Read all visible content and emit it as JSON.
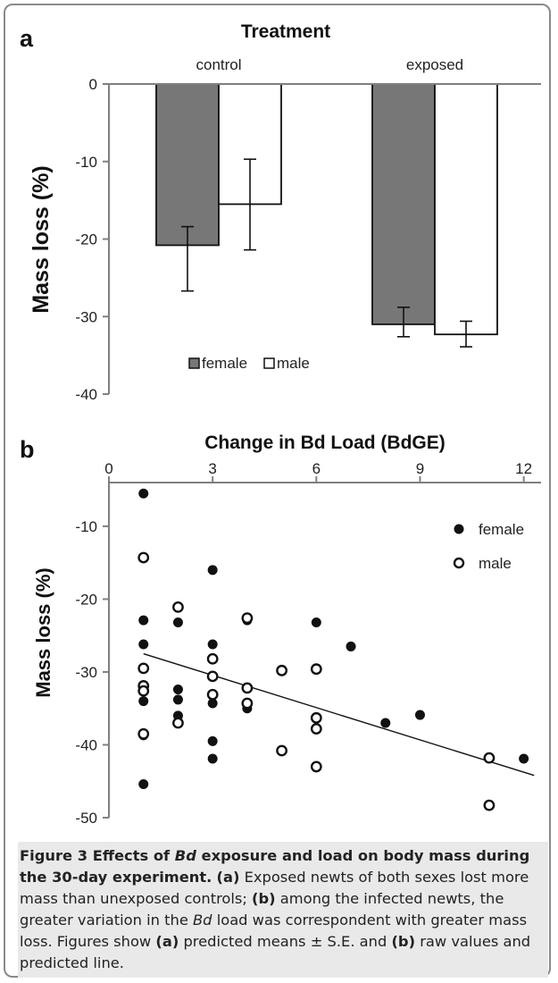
{
  "panel_a": {
    "label": "a",
    "title": "Treatment",
    "ylabel": "Mass loss (%)",
    "legend": [
      {
        "name": "female",
        "color": "#777777"
      },
      {
        "name": "male",
        "color": "#ffffff"
      }
    ]
  },
  "panel_b": {
    "label": "b",
    "xlabel": "Change in Bd Load (BdGE)",
    "ylabel": "Mass loss (%)",
    "legend": [
      {
        "name": "female",
        "marker": "filled-circle"
      },
      {
        "name": "male",
        "marker": "open-circle"
      }
    ]
  },
  "caption": {
    "fig_label": "Figure 3",
    "title_1": "Effects of ",
    "title_italic": "Bd",
    "title_2": " exposure and load on body mass during the 30-day experiment.",
    "a_ref": "(a)",
    "text_1": " Exposed newts of both sexes lost more mass than unexposed controls; ",
    "b_ref": "(b)",
    "text_2": " among the infected newts, the greater variation in the ",
    "text_italic": "Bd",
    "text_3": " load was correspondent with greater mass loss. Figures show ",
    "a_ref2": "(a)",
    "text_4": " predicted means ± S.E. and ",
    "b_ref2": "(b)",
    "text_5": " raw values and predicted line."
  },
  "chart_data": [
    {
      "type": "bar",
      "title": "Treatment",
      "ylabel": "Mass loss (%)",
      "categories": [
        "control",
        "exposed"
      ],
      "ylim": [
        -40,
        0
      ],
      "yticks": [
        0,
        -10,
        -20,
        -30,
        -40
      ],
      "legend_position": "bottom-center",
      "series": [
        {
          "name": "female",
          "values": [
            -20.8,
            -31.0
          ],
          "err_low": [
            -26.7,
            -32.6
          ],
          "err_high": [
            -18.4,
            -28.8
          ]
        },
        {
          "name": "male",
          "values": [
            -15.5,
            -32.3
          ],
          "err_low": [
            -21.4,
            -33.9
          ],
          "err_high": [
            -9.7,
            -30.6
          ]
        }
      ]
    },
    {
      "type": "scatter",
      "xlabel": "Change in Bd Load (BdGE)",
      "ylabel": "Mass loss (%)",
      "xlim": [
        0,
        12.5
      ],
      "ylim": [
        -50,
        -4
      ],
      "xticks": [
        0,
        3,
        6,
        9,
        12
      ],
      "yticks": [
        -10,
        -20,
        -30,
        -40,
        -50
      ],
      "x_axis_position": "top",
      "legend_position": "top-right",
      "series": [
        {
          "name": "female",
          "marker": "filled",
          "points": [
            [
              1,
              -5.5
            ],
            [
              1,
              -22.9
            ],
            [
              1,
              -26.2
            ],
            [
              1,
              -32.3
            ],
            [
              1,
              -34.0
            ],
            [
              1,
              -38.7
            ],
            [
              1,
              -45.4
            ],
            [
              2,
              -23.2
            ],
            [
              2,
              -32.4
            ],
            [
              2,
              -33.8
            ],
            [
              2,
              -36.0
            ],
            [
              3,
              -16.0
            ],
            [
              3,
              -26.2
            ],
            [
              3,
              -34.3
            ],
            [
              3,
              -39.5
            ],
            [
              3,
              -41.9
            ],
            [
              4,
              -22.9
            ],
            [
              4,
              -35.0
            ],
            [
              6,
              -23.2
            ],
            [
              7,
              -26.5
            ],
            [
              8,
              -37.0
            ],
            [
              9,
              -35.9
            ],
            [
              12,
              -41.9
            ]
          ]
        },
        {
          "name": "male",
          "marker": "open",
          "points": [
            [
              1,
              -14.3
            ],
            [
              1,
              -29.5
            ],
            [
              1,
              -31.9
            ],
            [
              1,
              -32.6
            ],
            [
              1,
              -38.5
            ],
            [
              2,
              -21.1
            ],
            [
              2,
              -37.0
            ],
            [
              3,
              -28.2
            ],
            [
              3,
              -30.6
            ],
            [
              3,
              -33.1
            ],
            [
              4,
              -22.6
            ],
            [
              4,
              -32.2
            ],
            [
              4,
              -34.3
            ],
            [
              5,
              -29.8
            ],
            [
              5,
              -40.8
            ],
            [
              6,
              -29.6
            ],
            [
              6,
              -36.3
            ],
            [
              6,
              -37.8
            ],
            [
              6,
              -43.0
            ],
            [
              11,
              -41.8
            ],
            [
              11,
              -48.3
            ]
          ]
        }
      ],
      "trend_line": {
        "x": [
          1,
          12.3
        ],
        "y": [
          -27.5,
          -44.2
        ]
      }
    }
  ]
}
